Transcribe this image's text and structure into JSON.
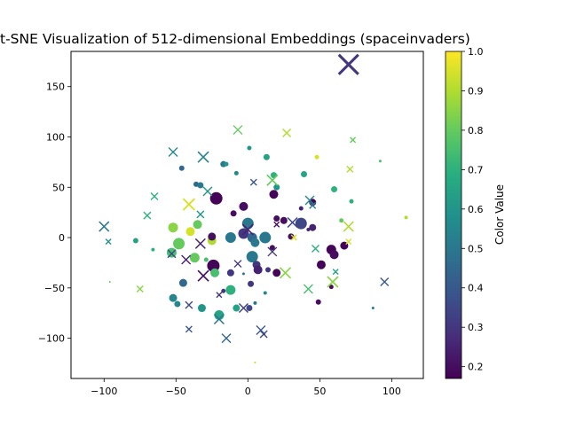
{
  "chart_data": {
    "type": "scatter",
    "title": "t-SNE Visualization of 512-dimensional Embeddings (spaceinvaders)",
    "xlabel": "",
    "ylabel": "",
    "xlim": [
      -123,
      122
    ],
    "ylim": [
      -140,
      185
    ],
    "xticks": [
      -100,
      -50,
      0,
      50,
      100
    ],
    "yticks": [
      -100,
      -50,
      0,
      50,
      100,
      150
    ],
    "grid": false,
    "colorbar": {
      "label": "Color Value",
      "range": [
        0.17,
        1.0
      ],
      "ticks": [
        0.2,
        0.3,
        0.4,
        0.5,
        0.6,
        0.7,
        0.8,
        0.9,
        1.0
      ],
      "colormap": "viridis"
    },
    "series": [
      {
        "marker": "circle",
        "points": [
          {
            "x": -22,
            "y": 39,
            "s": 7,
            "c": 0.18
          },
          {
            "x": -17,
            "y": 73,
            "s": 3.5,
            "c": 0.5
          },
          {
            "x": -15,
            "y": 73,
            "s": 2.5,
            "c": 0.6
          },
          {
            "x": -8,
            "y": 64,
            "s": 2.5,
            "c": 0.55
          },
          {
            "x": 1,
            "y": 89,
            "s": 2.5,
            "c": 0.6
          },
          {
            "x": 13,
            "y": 80,
            "s": 3.5,
            "c": 0.65
          },
          {
            "x": 18,
            "y": 62,
            "s": 3.5,
            "c": 0.7
          },
          {
            "x": 18,
            "y": 43,
            "s": 5,
            "c": 0.18
          },
          {
            "x": 20,
            "y": 50,
            "s": 3.5,
            "c": 0.6
          },
          {
            "x": 39,
            "y": 63,
            "s": 3.5,
            "c": 0.65
          },
          {
            "x": 48,
            "y": 80,
            "s": 2.5,
            "c": 0.95
          },
          {
            "x": 60,
            "y": 48,
            "s": 3.5,
            "c": 0.7
          },
          {
            "x": 72,
            "y": 36,
            "s": 2.5,
            "c": 0.7
          },
          {
            "x": 92,
            "y": 76,
            "s": 1.5,
            "c": 0.75
          },
          {
            "x": 110,
            "y": 20,
            "s": 2,
            "c": 0.9
          },
          {
            "x": 45,
            "y": 35,
            "s": 4,
            "c": 0.18
          },
          {
            "x": -46,
            "y": 69,
            "s": 3,
            "c": 0.45
          },
          {
            "x": -36,
            "y": 53,
            "s": 3,
            "c": 0.45
          },
          {
            "x": -33,
            "y": 52,
            "s": 3.5,
            "c": 0.5
          },
          {
            "x": -10,
            "y": 24,
            "s": 3.5,
            "c": 0.2
          },
          {
            "x": -3,
            "y": 31,
            "s": 5,
            "c": 0.2
          },
          {
            "x": -35,
            "y": 13,
            "s": 5,
            "c": 0.8
          },
          {
            "x": -40,
            "y": 6,
            "s": 5,
            "c": 0.95
          },
          {
            "x": -52,
            "y": 10,
            "s": 5.5,
            "c": 0.85
          },
          {
            "x": -48,
            "y": -6,
            "s": 6.5,
            "c": 0.8
          },
          {
            "x": -53,
            "y": -15,
            "s": 5.5,
            "c": 0.75
          },
          {
            "x": -37,
            "y": -20,
            "s": 5.5,
            "c": 0.8
          },
          {
            "x": -78,
            "y": -3,
            "s": 3,
            "c": 0.65
          },
          {
            "x": -66,
            "y": -12,
            "s": 2,
            "c": 0.7
          },
          {
            "x": -24,
            "y": -28,
            "s": 7,
            "c": 0.18
          },
          {
            "x": -25,
            "y": -3,
            "s": 5,
            "c": 0.9
          },
          {
            "x": -23,
            "y": -35,
            "s": 5,
            "c": 0.75
          },
          {
            "x": -29,
            "y": -22,
            "s": 2.5,
            "c": 0.75
          },
          {
            "x": -12,
            "y": -35,
            "s": 4,
            "c": 0.3
          },
          {
            "x": -12,
            "y": -52,
            "s": 5.5,
            "c": 0.7
          },
          {
            "x": -17,
            "y": -53,
            "s": 2.5,
            "c": 0.3
          },
          {
            "x": -45,
            "y": -45,
            "s": 4.5,
            "c": 0.45
          },
          {
            "x": -52,
            "y": -60,
            "s": 4.5,
            "c": 0.55
          },
          {
            "x": -49,
            "y": -66,
            "s": 3.5,
            "c": 0.55
          },
          {
            "x": -32,
            "y": -70,
            "s": 4.5,
            "c": 0.6
          },
          {
            "x": -20,
            "y": -77,
            "s": 5.5,
            "c": 0.65
          },
          {
            "x": -8,
            "y": -70,
            "s": 4,
            "c": 0.65
          },
          {
            "x": 1,
            "y": -70,
            "s": 3.5,
            "c": 0.35
          },
          {
            "x": 5,
            "y": -65,
            "s": 2,
            "c": 0.5
          },
          {
            "x": -12,
            "y": 0,
            "s": 6,
            "c": 0.5
          },
          {
            "x": 0,
            "y": 14,
            "s": 6.5,
            "c": 0.5
          },
          {
            "x": -3,
            "y": 4,
            "s": 6,
            "c": 0.3
          },
          {
            "x": 3,
            "y": 0,
            "s": 5.5,
            "c": 0.45
          },
          {
            "x": 5,
            "y": -5,
            "s": 5,
            "c": 0.5
          },
          {
            "x": 12,
            "y": 0,
            "s": 6.5,
            "c": 0.5
          },
          {
            "x": 3,
            "y": -19,
            "s": 6.5,
            "c": 0.5
          },
          {
            "x": 6,
            "y": -27,
            "s": 4.5,
            "c": 0.3
          },
          {
            "x": 7,
            "y": -32,
            "s": 5,
            "c": 0.25
          },
          {
            "x": 2,
            "y": -46,
            "s": 3.5,
            "c": 0.3
          },
          {
            "x": -3,
            "y": -36,
            "s": 1.5,
            "c": 0.5
          },
          {
            "x": 12,
            "y": -55,
            "s": 2,
            "c": 0.55
          },
          {
            "x": 14,
            "y": -32,
            "s": 3,
            "c": 0.3
          },
          {
            "x": 17,
            "y": -10,
            "s": 3,
            "c": 0.2
          },
          {
            "x": 20,
            "y": 19,
            "s": 3.5,
            "c": 0.2
          },
          {
            "x": 25,
            "y": 17,
            "s": 4,
            "c": 0.2
          },
          {
            "x": 30,
            "y": 1,
            "s": 3.5,
            "c": 0.2
          },
          {
            "x": 20,
            "y": -35,
            "s": 4.5,
            "c": 0.18
          },
          {
            "x": 37,
            "y": 14,
            "s": 6.5,
            "c": 0.35
          },
          {
            "x": 45,
            "y": 10,
            "s": 4,
            "c": 0.25
          },
          {
            "x": 37,
            "y": 29,
            "s": 2.5,
            "c": 0.25
          },
          {
            "x": 42,
            "y": 8,
            "s": 2,
            "c": 0.25
          },
          {
            "x": 58,
            "y": -12,
            "s": 5.5,
            "c": 0.18
          },
          {
            "x": 60,
            "y": -17,
            "s": 5,
            "c": 0.2
          },
          {
            "x": 67,
            "y": -8,
            "s": 4.5,
            "c": 0.18
          },
          {
            "x": 51,
            "y": -27,
            "s": 5,
            "c": 0.18
          },
          {
            "x": 58,
            "y": -49,
            "s": 2.5,
            "c": 0.2
          },
          {
            "x": 49,
            "y": -64,
            "s": 3,
            "c": 0.2
          },
          {
            "x": 65,
            "y": 17,
            "s": 2.5,
            "c": 0.8
          },
          {
            "x": -25,
            "y": 1,
            "s": 4.5,
            "c": 0.2
          },
          {
            "x": 87,
            "y": -70,
            "s": 1.5,
            "c": 0.5
          },
          {
            "x": -96,
            "y": -44,
            "s": 1,
            "c": 0.8
          },
          {
            "x": 5,
            "y": -124,
            "s": 1,
            "c": 0.9
          }
        ]
      },
      {
        "marker": "x",
        "points": [
          {
            "x": 70,
            "y": 172,
            "s": 11,
            "c": 0.3
          },
          {
            "x": -7,
            "y": 107,
            "s": 5,
            "c": 0.8
          },
          {
            "x": 27,
            "y": 104,
            "s": 4.5,
            "c": 0.9
          },
          {
            "x": 73,
            "y": 97,
            "s": 3,
            "c": 0.8
          },
          {
            "x": 71,
            "y": 68,
            "s": 3.5,
            "c": 0.9
          },
          {
            "x": -52,
            "y": 85,
            "s": 5,
            "c": 0.55
          },
          {
            "x": -31,
            "y": 80,
            "s": 6,
            "c": 0.55
          },
          {
            "x": 17,
            "y": 57,
            "s": 6,
            "c": 0.8
          },
          {
            "x": 4,
            "y": 55,
            "s": 3.5,
            "c": 0.4
          },
          {
            "x": -28,
            "y": 46,
            "s": 5,
            "c": 0.6
          },
          {
            "x": -41,
            "y": 33,
            "s": 6.5,
            "c": 0.95
          },
          {
            "x": -33,
            "y": 23,
            "s": 4,
            "c": 0.6
          },
          {
            "x": -65,
            "y": 41,
            "s": 4,
            "c": 0.7
          },
          {
            "x": -70,
            "y": 22,
            "s": 4,
            "c": 0.7
          },
          {
            "x": -100,
            "y": 11,
            "s": 5.5,
            "c": 0.5
          },
          {
            "x": -97,
            "y": -4,
            "s": 3,
            "c": 0.6
          },
          {
            "x": -33,
            "y": -6,
            "s": 5.5,
            "c": 0.25
          },
          {
            "x": -43,
            "y": -22,
            "s": 5,
            "c": 0.25
          },
          {
            "x": -53,
            "y": -16,
            "s": 4.5,
            "c": 0.35
          },
          {
            "x": -31,
            "y": -38,
            "s": 6,
            "c": 0.2
          },
          {
            "x": -7,
            "y": -26,
            "s": 4,
            "c": 0.3
          },
          {
            "x": -20,
            "y": -57,
            "s": 3,
            "c": 0.3
          },
          {
            "x": -41,
            "y": -67,
            "s": 4,
            "c": 0.35
          },
          {
            "x": -20,
            "y": -81,
            "s": 5.5,
            "c": 0.5
          },
          {
            "x": -3,
            "y": -70,
            "s": 5,
            "c": 0.3
          },
          {
            "x": 9,
            "y": -92,
            "s": 5,
            "c": 0.4
          },
          {
            "x": 11,
            "y": -96,
            "s": 4,
            "c": 0.35
          },
          {
            "x": -41,
            "y": -91,
            "s": 3.5,
            "c": 0.4
          },
          {
            "x": -15,
            "y": -100,
            "s": 5,
            "c": 0.45
          },
          {
            "x": -75,
            "y": -51,
            "s": 3.5,
            "c": 0.85
          },
          {
            "x": 17,
            "y": -14,
            "s": 5,
            "c": 0.3
          },
          {
            "x": 20,
            "y": 13,
            "s": 3,
            "c": 0.2
          },
          {
            "x": 26,
            "y": -35,
            "s": 6,
            "c": 0.85
          },
          {
            "x": 31,
            "y": 15,
            "s": 5.5,
            "c": 0.35
          },
          {
            "x": 32,
            "y": 0,
            "s": 3,
            "c": 0.95
          },
          {
            "x": 43,
            "y": 37,
            "s": 5,
            "c": 0.55
          },
          {
            "x": 45,
            "y": 32,
            "s": 3.5,
            "c": 0.5
          },
          {
            "x": 47,
            "y": -11,
            "s": 4,
            "c": 0.7
          },
          {
            "x": 42,
            "y": -51,
            "s": 5,
            "c": 0.75
          },
          {
            "x": 59,
            "y": -44,
            "s": 6,
            "c": 0.85
          },
          {
            "x": 61,
            "y": -34,
            "s": 3,
            "c": 0.65
          },
          {
            "x": 70,
            "y": 11,
            "s": 5.5,
            "c": 0.9
          },
          {
            "x": 70,
            "y": -4,
            "s": 3,
            "c": 0.95
          },
          {
            "x": 95,
            "y": -44,
            "s": 4.5,
            "c": 0.4
          },
          {
            "x": 0,
            "y": 8,
            "s": 6,
            "c": 0.25
          }
        ]
      }
    ]
  }
}
